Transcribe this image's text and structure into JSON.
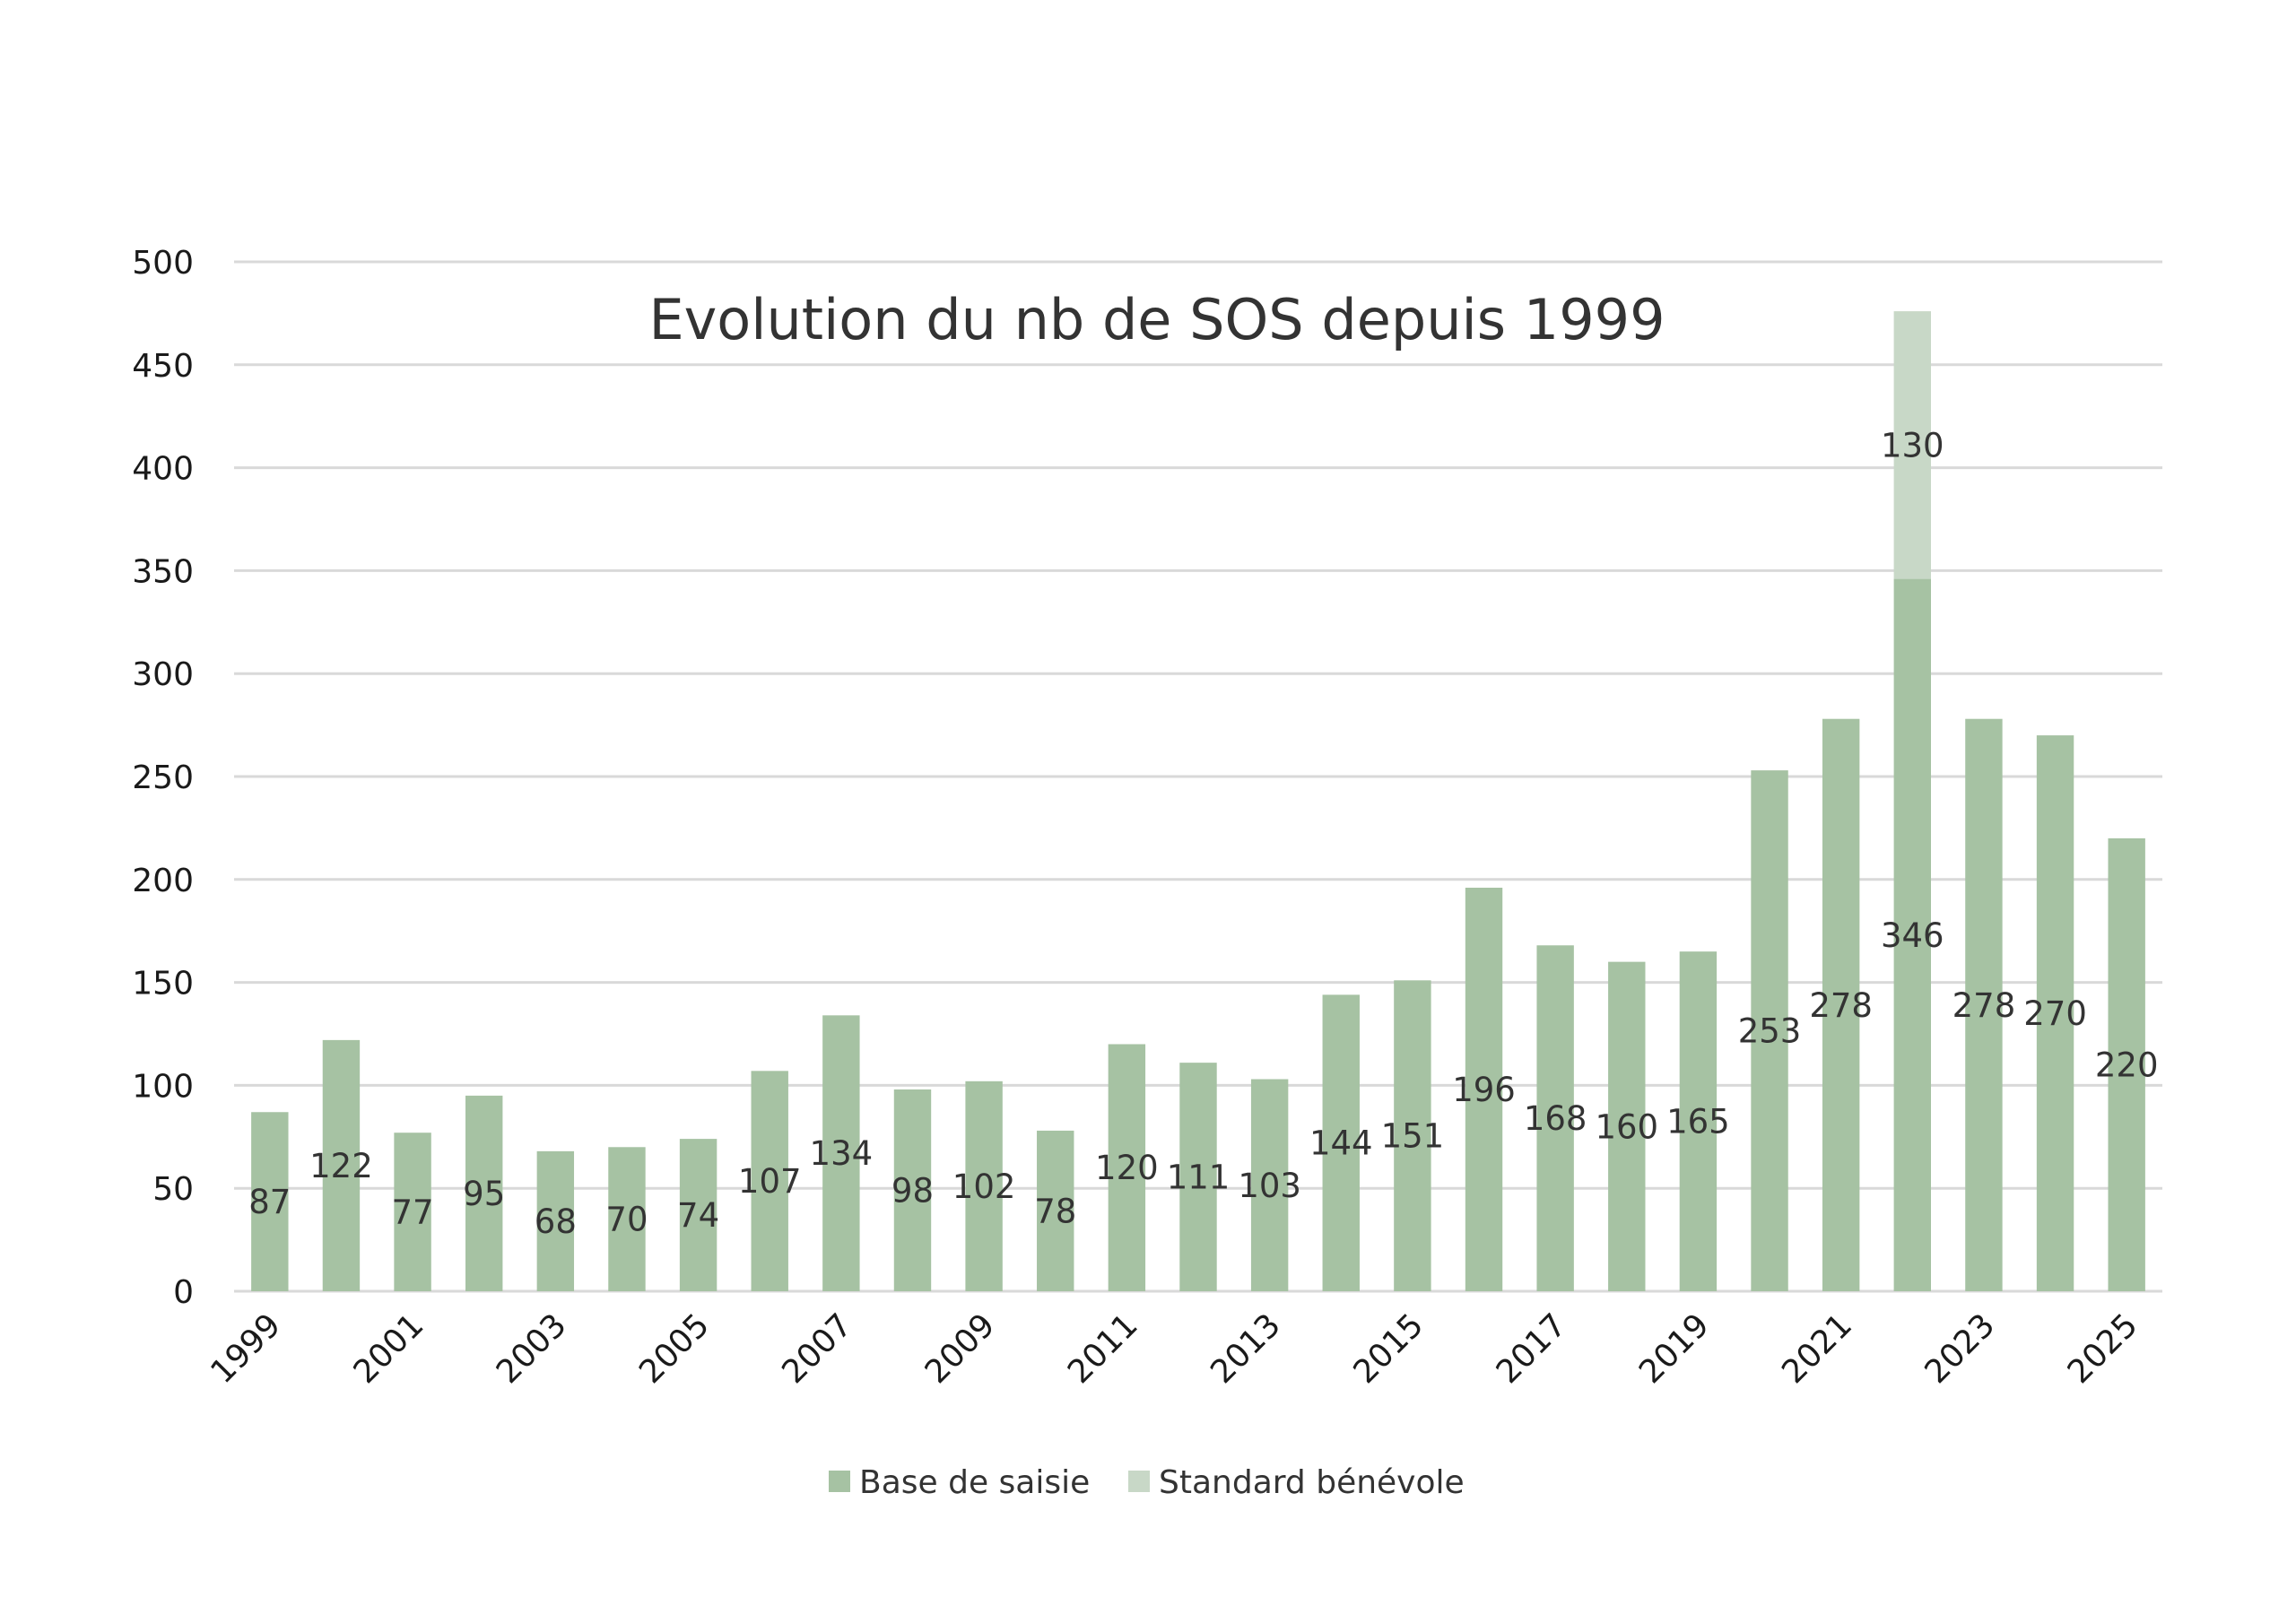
{
  "chart_data": {
    "type": "bar",
    "stacked": true,
    "title": "Evolution du nb de SOS depuis 1999",
    "xlabel": "",
    "ylabel": "",
    "ylim": [
      0,
      500
    ],
    "yticks": [
      0,
      50,
      100,
      150,
      200,
      250,
      300,
      350,
      400,
      450,
      500
    ],
    "grid": true,
    "legend_position": "bottom",
    "categories": [
      "1999",
      "2000",
      "2001",
      "2002",
      "2003",
      "2004",
      "2005",
      "2006",
      "2007",
      "2008",
      "2009",
      "2010",
      "2011",
      "2012",
      "2013",
      "2014",
      "2015",
      "2016",
      "2017",
      "2018",
      "2019",
      "2020",
      "2021",
      "2022",
      "2023",
      "2024",
      "2025"
    ],
    "xtick_labels": [
      "1999",
      "2001",
      "2003",
      "2005",
      "2007",
      "2009",
      "2011",
      "2013",
      "2015",
      "2017",
      "2019",
      "2021",
      "2023",
      "2025"
    ],
    "series": [
      {
        "name": "Base de saisie",
        "color": "#a6c2a3",
        "values": [
          87,
          122,
          77,
          95,
          68,
          70,
          74,
          107,
          134,
          98,
          102,
          78,
          120,
          111,
          103,
          144,
          151,
          196,
          168,
          160,
          165,
          253,
          278,
          346,
          278,
          270,
          220
        ]
      },
      {
        "name": "Standard bénévole",
        "color": "#c8d8c7",
        "values": [
          0,
          0,
          0,
          0,
          0,
          0,
          0,
          0,
          0,
          0,
          0,
          0,
          0,
          0,
          0,
          0,
          0,
          0,
          0,
          0,
          0,
          0,
          0,
          130,
          0,
          0,
          0
        ]
      }
    ],
    "gridline_color": "#d9d9d9"
  }
}
